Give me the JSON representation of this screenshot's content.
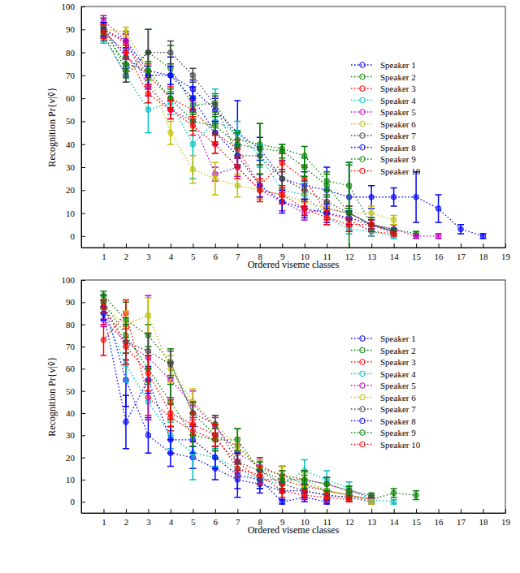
{
  "chart_data": [
    {
      "type": "line",
      "xlabel": "Ordered viseme classes",
      "ylabel": "Recognition Pr{v|v̂}",
      "x": [
        1,
        2,
        3,
        4,
        5,
        6,
        7,
        8,
        9,
        10,
        11,
        12,
        13,
        14,
        15,
        16,
        17,
        18
      ],
      "xlim": [
        0,
        19
      ],
      "xticks": [
        1,
        2,
        3,
        4,
        5,
        6,
        7,
        8,
        9,
        10,
        11,
        12,
        13,
        14,
        15,
        16,
        17,
        18,
        19
      ],
      "ylim": [
        -5,
        100
      ],
      "yticks": [
        0,
        10,
        20,
        30,
        40,
        50,
        60,
        70,
        80,
        90,
        100
      ],
      "grid": false,
      "legend": "upper right",
      "marker": "circle",
      "line_style": "dotted",
      "series": [
        {
          "name": "Speaker 1",
          "color": "#0000ff",
          "values": [
            90,
            85,
            72,
            70,
            64,
            55,
            45,
            38,
            25,
            22,
            20,
            17,
            17,
            17,
            17,
            12,
            3,
            0
          ],
          "errors": [
            3,
            4,
            8,
            8,
            4,
            5,
            14,
            5,
            8,
            6,
            10,
            15,
            5,
            4,
            11,
            6,
            2,
            1
          ]
        },
        {
          "name": "Speaker 2",
          "color": "#008000",
          "values": [
            92,
            72,
            80,
            73,
            57,
            58,
            42,
            40,
            38,
            35,
            24,
            22,
            5,
            3,
            1,
            null,
            null,
            null
          ],
          "errors": [
            3,
            3,
            10,
            10,
            4,
            4,
            4,
            9,
            2,
            4,
            4,
            10,
            3,
            2,
            1,
            null,
            null,
            null
          ]
        },
        {
          "name": "Speaker 3",
          "color": "#ff0000",
          "values": [
            90,
            84,
            70,
            60,
            55,
            45,
            38,
            22,
            32,
            25,
            10,
            7,
            2,
            1,
            null,
            null,
            null,
            null
          ],
          "errors": [
            3,
            4,
            5,
            5,
            4,
            4,
            4,
            5,
            4,
            5,
            3,
            3,
            2,
            1,
            null,
            null,
            null,
            null
          ]
        },
        {
          "name": "Speaker 4",
          "color": "#00bfbf",
          "values": [
            87,
            70,
            55,
            58,
            40,
            50,
            45,
            35,
            20,
            18,
            8,
            3,
            2,
            0,
            null,
            null,
            null,
            null
          ],
          "errors": [
            3,
            3,
            10,
            5,
            15,
            14,
            5,
            5,
            5,
            5,
            3,
            2,
            2,
            1,
            null,
            null,
            null,
            null
          ]
        },
        {
          "name": "Speaker 5",
          "color": "#bf00bf",
          "values": [
            94,
            85,
            65,
            55,
            50,
            27,
            30,
            20,
            15,
            10,
            12,
            10,
            5,
            3,
            0,
            0,
            null,
            null
          ],
          "errors": [
            2,
            3,
            4,
            4,
            4,
            3,
            4,
            4,
            4,
            3,
            3,
            3,
            3,
            2,
            1,
            1,
            null,
            null
          ]
        },
        {
          "name": "Speaker 6",
          "color": "#bfbf00",
          "values": [
            90,
            89,
            72,
            45,
            29,
            25,
            22,
            20,
            18,
            15,
            12,
            10,
            10,
            7,
            null,
            null,
            null,
            null
          ],
          "errors": [
            2,
            2,
            4,
            5,
            6,
            7,
            5,
            4,
            3,
            3,
            3,
            3,
            3,
            2,
            null,
            null,
            null,
            null
          ]
        },
        {
          "name": "Speaker 7",
          "color": "#404040",
          "values": [
            88,
            70,
            80,
            80,
            70,
            57,
            35,
            35,
            25,
            20,
            15,
            10,
            5,
            2,
            null,
            null,
            null,
            null
          ],
          "errors": [
            3,
            3,
            10,
            5,
            3,
            4,
            4,
            4,
            4,
            4,
            3,
            3,
            2,
            1,
            null,
            null,
            null,
            null
          ]
        },
        {
          "name": "Speaker 8",
          "color": "#0000ff",
          "values": [
            90,
            78,
            70,
            70,
            60,
            45,
            35,
            22,
            15,
            12,
            10,
            8,
            5,
            2,
            null,
            null,
            null,
            null
          ],
          "errors": [
            3,
            4,
            4,
            4,
            5,
            5,
            5,
            5,
            5,
            4,
            4,
            3,
            2,
            1,
            null,
            null,
            null,
            null
          ]
        },
        {
          "name": "Speaker 9",
          "color": "#008000",
          "values": [
            89,
            75,
            72,
            60,
            50,
            48,
            40,
            38,
            37,
            30,
            22,
            10,
            5,
            2,
            null,
            null,
            null,
            null
          ],
          "errors": [
            3,
            3,
            4,
            4,
            4,
            4,
            5,
            11,
            3,
            4,
            5,
            21,
            3,
            1,
            null,
            null,
            null,
            null
          ]
        },
        {
          "name": "Speaker 10",
          "color": "#ff0000",
          "values": [
            89,
            80,
            62,
            55,
            48,
            40,
            30,
            20,
            18,
            12,
            8,
            5,
            5,
            1,
            null,
            null,
            null,
            null
          ],
          "errors": [
            3,
            3,
            4,
            4,
            4,
            4,
            5,
            5,
            4,
            3,
            3,
            3,
            2,
            1,
            null,
            null,
            null,
            null
          ]
        }
      ]
    },
    {
      "type": "line",
      "xlabel": "Ordered viseme classes",
      "ylabel": "Recognition Pr{v|v̂}",
      "x": [
        1,
        2,
        3,
        4,
        5,
        6,
        7,
        8,
        9,
        10,
        11,
        12,
        13,
        14,
        15
      ],
      "xlim": [
        0,
        19
      ],
      "xticks": [
        1,
        2,
        3,
        4,
        5,
        6,
        7,
        8,
        9,
        10,
        11,
        12,
        13,
        14,
        15,
        16,
        17,
        18,
        19
      ],
      "ylim": [
        -5,
        100
      ],
      "yticks": [
        0,
        10,
        20,
        30,
        40,
        50,
        60,
        70,
        80,
        90,
        100
      ],
      "grid": false,
      "legend": "upper right",
      "marker": "circle",
      "line_style": "dotted",
      "series": [
        {
          "name": "Speaker 1",
          "color": "#0000ff",
          "values": [
            90,
            55,
            30,
            22,
            20,
            15,
            10,
            8,
            5,
            5,
            3,
            2,
            0,
            null,
            null
          ],
          "errors": [
            3,
            12,
            8,
            6,
            5,
            5,
            4,
            4,
            4,
            3,
            2,
            2,
            1,
            null,
            null
          ]
        },
        {
          "name": "Speaker 2",
          "color": "#008000",
          "values": [
            93,
            82,
            75,
            63,
            40,
            30,
            25,
            15,
            12,
            8,
            5,
            3,
            1,
            4,
            3
          ],
          "errors": [
            2,
            8,
            5,
            6,
            5,
            5,
            8,
            4,
            4,
            4,
            3,
            2,
            1,
            2,
            2
          ]
        },
        {
          "name": "Speaker 3",
          "color": "#ff0000",
          "values": [
            73,
            85,
            47,
            38,
            32,
            28,
            18,
            10,
            10,
            7,
            5,
            3,
            1,
            null,
            null
          ],
          "errors": [
            7,
            6,
            8,
            6,
            5,
            5,
            5,
            4,
            4,
            3,
            3,
            2,
            1,
            null,
            null
          ]
        },
        {
          "name": "Speaker 4",
          "color": "#00bfbf",
          "values": [
            85,
            62,
            45,
            30,
            22,
            20,
            15,
            10,
            8,
            14,
            10,
            6,
            1,
            0,
            null
          ],
          "errors": [
            3,
            8,
            8,
            6,
            12,
            4,
            4,
            4,
            4,
            5,
            4,
            3,
            1,
            1,
            null
          ]
        },
        {
          "name": "Speaker 5",
          "color": "#bf00bf",
          "values": [
            82,
            72,
            65,
            55,
            44,
            34,
            22,
            16,
            12,
            10,
            8,
            5,
            2,
            null,
            null
          ],
          "errors": [
            3,
            8,
            28,
            8,
            6,
            4,
            4,
            4,
            4,
            4,
            3,
            2,
            1,
            null,
            null
          ]
        },
        {
          "name": "Speaker 6",
          "color": "#bfbf00",
          "values": [
            88,
            80,
            84,
            60,
            45,
            35,
            25,
            15,
            12,
            10,
            5,
            3,
            0,
            null,
            null
          ],
          "errors": [
            3,
            6,
            8,
            6,
            6,
            4,
            4,
            4,
            4,
            3,
            3,
            2,
            1,
            null,
            null
          ]
        },
        {
          "name": "Speaker 7",
          "color": "#404040",
          "values": [
            88,
            72,
            68,
            62,
            40,
            35,
            18,
            14,
            8,
            5,
            3,
            2,
            null,
            null,
            null
          ],
          "errors": [
            3,
            8,
            8,
            6,
            5,
            4,
            4,
            4,
            4,
            3,
            2,
            2,
            null,
            null,
            null
          ]
        },
        {
          "name": "Speaker 8",
          "color": "#0000ff",
          "values": [
            85,
            36,
            55,
            28,
            28,
            20,
            12,
            10,
            0,
            2,
            0,
            null,
            null,
            null,
            null
          ],
          "errors": [
            3,
            12,
            6,
            6,
            6,
            5,
            10,
            4,
            1,
            2,
            1,
            null,
            null,
            null,
            null
          ]
        },
        {
          "name": "Speaker 9",
          "color": "#008000",
          "values": [
            90,
            75,
            60,
            45,
            30,
            28,
            28,
            14,
            10,
            10,
            8,
            5,
            3,
            null,
            null
          ],
          "errors": [
            3,
            8,
            6,
            8,
            5,
            5,
            5,
            4,
            4,
            4,
            3,
            2,
            1,
            null,
            null
          ]
        },
        {
          "name": "Speaker 10",
          "color": "#ff0000",
          "values": [
            88,
            70,
            58,
            40,
            35,
            30,
            15,
            12,
            5,
            3,
            2,
            1,
            null,
            null,
            null
          ],
          "errors": [
            3,
            8,
            8,
            6,
            5,
            5,
            4,
            4,
            3,
            2,
            2,
            1,
            null,
            null,
            null
          ]
        }
      ]
    }
  ]
}
